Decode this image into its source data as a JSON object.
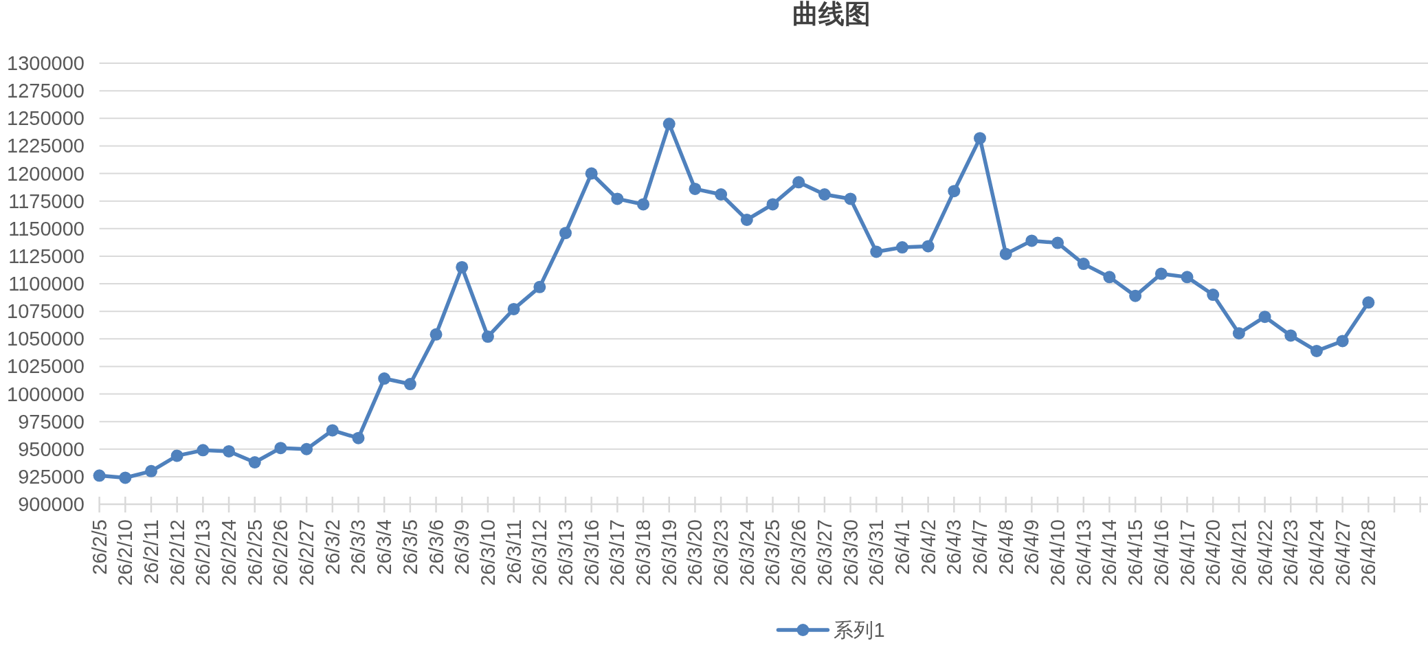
{
  "chart_data": {
    "type": "line",
    "title": "曲线图",
    "categories": [
      "26/2/5",
      "26/2/10",
      "26/2/11",
      "26/2/12",
      "26/2/13",
      "26/2/24",
      "26/2/25",
      "26/2/26",
      "26/2/27",
      "26/3/2",
      "26/3/3",
      "26/3/4",
      "26/3/5",
      "26/3/6",
      "26/3/9",
      "26/3/10",
      "26/3/11",
      "26/3/12",
      "26/3/13",
      "26/3/16",
      "26/3/17",
      "26/3/18",
      "26/3/19",
      "26/3/20",
      "26/3/23",
      "26/3/24",
      "26/3/25",
      "26/3/26",
      "26/3/27",
      "26/3/30",
      "26/3/31",
      "26/4/1",
      "26/4/2",
      "26/4/3",
      "26/4/7",
      "26/4/8",
      "26/4/9",
      "26/4/10",
      "26/4/13",
      "26/4/14",
      "26/4/15",
      "26/4/16",
      "26/4/17",
      "26/4/20",
      "26/4/21",
      "26/4/22",
      "26/4/23",
      "26/4/24",
      "26/4/27",
      "26/4/28",
      null,
      null
    ],
    "series": [
      {
        "name": "系列1",
        "color": "#4f81bd",
        "values": [
          926000,
          924000,
          930000,
          944000,
          949000,
          948000,
          938000,
          951000,
          950000,
          967000,
          960000,
          1014000,
          1009000,
          1054000,
          1115000,
          1052000,
          1077000,
          1097000,
          1146000,
          1200000,
          1177000,
          1172000,
          1245000,
          1186000,
          1181000,
          1158000,
          1172000,
          1192000,
          1181000,
          1177000,
          1129000,
          1133000,
          1134000,
          1184000,
          1232000,
          1127000,
          1139000,
          1137000,
          1118000,
          1106000,
          1089000,
          1109000,
          1106000,
          1090000,
          1055000,
          1070000,
          1053000,
          1039000,
          1048000,
          1083000,
          null,
          null
        ]
      }
    ],
    "ylim": [
      900000,
      1300000
    ],
    "yticks": [
      900000,
      925000,
      950000,
      975000,
      1000000,
      1025000,
      1050000,
      1075000,
      1100000,
      1125000,
      1150000,
      1175000,
      1200000,
      1225000,
      1250000,
      1275000,
      1300000
    ],
    "grid": "y",
    "legend": "bottom",
    "marker": "circle",
    "line_style": "solid"
  }
}
